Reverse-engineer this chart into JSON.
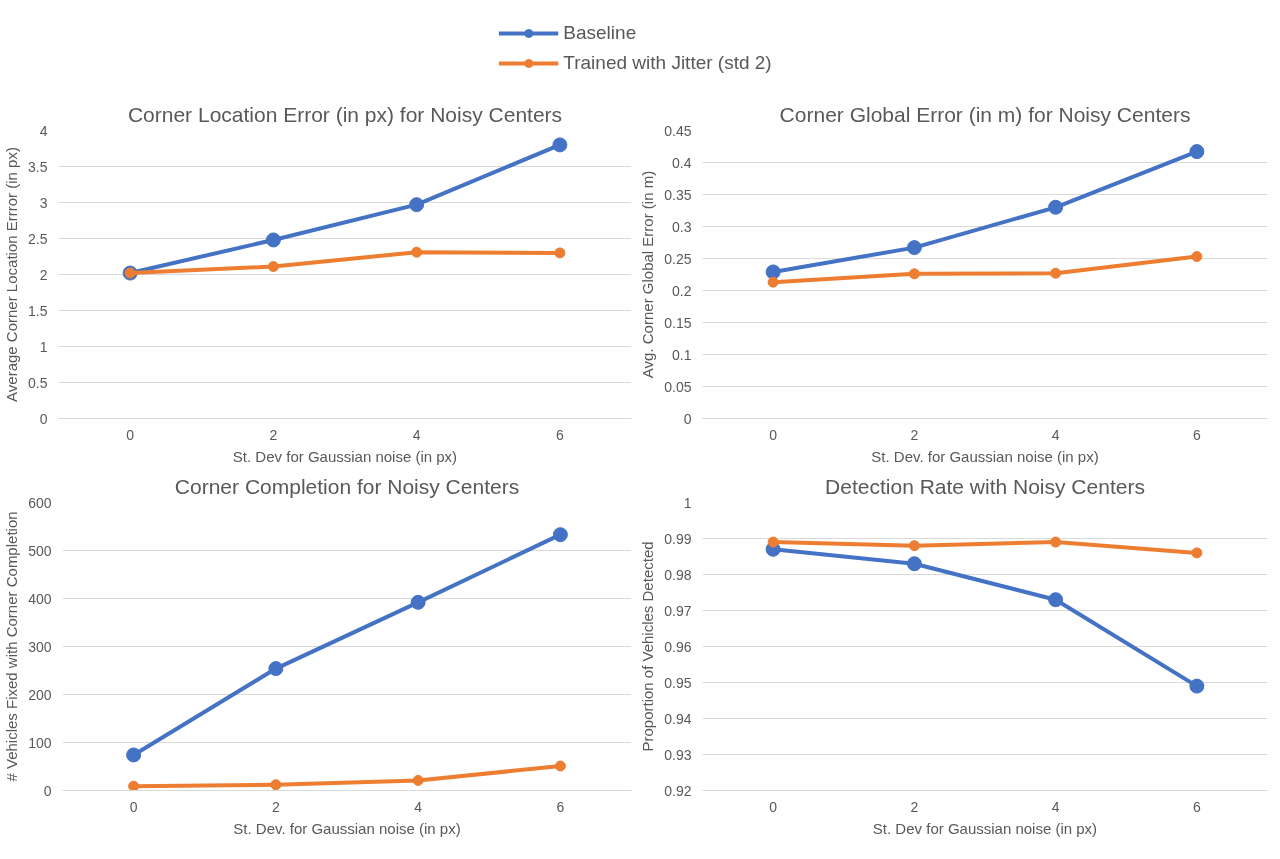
{
  "chart_data": [
    {
      "type": "line",
      "title": "Corner Location Error (in px) for Noisy Centers",
      "xlabel": "St. Dev for Gaussian noise (in px)",
      "ylabel": "Average Corner Location Errror (in px)",
      "categories": [
        "0",
        "2",
        "4",
        "6"
      ],
      "series": [
        {
          "name": "Baseline",
          "color": "#4472c4",
          "values": [
            2.02,
            2.48,
            2.97,
            3.8
          ]
        },
        {
          "name": "Trained with Jitter (std 2)",
          "color": "#ed7d31",
          "values": [
            2.02,
            2.11,
            2.31,
            2.3
          ]
        }
      ],
      "ylim": [
        0,
        4
      ],
      "yticks": [
        0,
        0.5,
        1,
        1.5,
        2,
        2.5,
        3,
        3.5,
        4
      ],
      "grid": "y",
      "legend": "top",
      "marker": "circle"
    },
    {
      "type": "line",
      "title": "Corner Global Error (in m) for Noisy Centers",
      "xlabel": "St. Dev. for Gaussian noise (in px)",
      "ylabel": "Avg. Corner Global Error (in m)",
      "categories": [
        "0",
        "2",
        "4",
        "6"
      ],
      "series": [
        {
          "color": "#4472c4",
          "values": [
            0.229,
            0.267,
            0.33,
            0.417
          ]
        },
        {
          "color": "#ed7d31",
          "values": [
            0.213,
            0.226,
            0.227,
            0.253
          ]
        }
      ],
      "ylim": [
        0,
        0.45
      ],
      "yticks": [
        0,
        0.05,
        0.1,
        0.15,
        0.2,
        0.25,
        0.3,
        0.35,
        0.4,
        0.45
      ],
      "grid": "y",
      "marker": "circle"
    },
    {
      "type": "line",
      "title": "Corner Completion for Noisy Centers",
      "xlabel": "St. Dev. for Gaussian noise (in px)",
      "ylabel": "# Vehicles Fixed with Corner Completion",
      "categories": [
        "0",
        "2",
        "4",
        "6"
      ],
      "series": [
        {
          "color": "#4472c4",
          "values": [
            74,
            254,
            392,
            533
          ]
        },
        {
          "color": "#ed7d31",
          "values": [
            9,
            12,
            21,
            51
          ]
        }
      ],
      "ylim": [
        0,
        600
      ],
      "yticks": [
        0,
        100,
        200,
        300,
        400,
        500,
        600
      ],
      "grid": "y",
      "marker": "circle"
    },
    {
      "type": "line",
      "title": "Detection Rate with Noisy Centers",
      "xlabel": "St. Dev for Gaussian noise (in px)",
      "ylabel": "Proportion of Vehicles Detected",
      "categories": [
        "0",
        "2",
        "4",
        "6"
      ],
      "series": [
        {
          "color": "#4472c4",
          "values": [
            0.987,
            0.983,
            0.973,
            0.949
          ]
        },
        {
          "color": "#ed7d31",
          "values": [
            0.989,
            0.988,
            0.989,
            0.986
          ]
        }
      ],
      "ylim": [
        0.92,
        1
      ],
      "yticks": [
        0.92,
        0.93,
        0.94,
        0.95,
        0.96,
        0.97,
        0.98,
        0.99,
        1
      ],
      "grid": "y",
      "marker": "circle"
    }
  ]
}
